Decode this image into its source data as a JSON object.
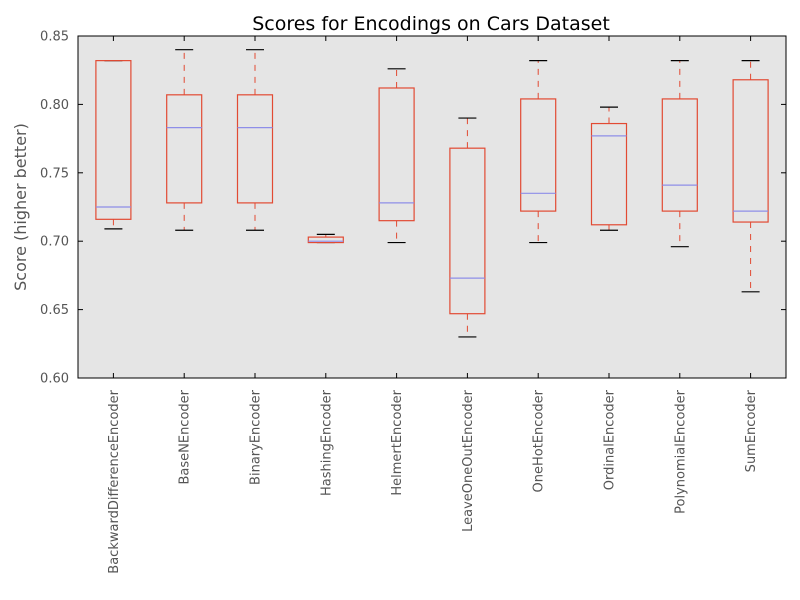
{
  "chart_data": {
    "type": "box",
    "title": "Scores for Encodings on Cars Dataset",
    "xlabel": "",
    "ylabel": "Score (higher better)",
    "ylim": [
      0.6,
      0.85
    ],
    "yticks": [
      "0.60",
      "0.65",
      "0.70",
      "0.75",
      "0.80",
      "0.85"
    ],
    "grid": false,
    "categories": [
      "BackwardDifferenceEncoder",
      "BaseNEncoder",
      "BinaryEncoder",
      "HashingEncoder",
      "HelmertEncoder",
      "LeaveOneOutEncoder",
      "OneHotEncoder",
      "OrdinalEncoder",
      "PolynomialEncoder",
      "SumEncoder"
    ],
    "boxes": [
      {
        "whislo": 0.709,
        "q1": 0.716,
        "med": 0.725,
        "q3": 0.832,
        "whishi": 0.832
      },
      {
        "whislo": 0.708,
        "q1": 0.728,
        "med": 0.783,
        "q3": 0.807,
        "whishi": 0.84
      },
      {
        "whislo": 0.708,
        "q1": 0.728,
        "med": 0.783,
        "q3": 0.807,
        "whishi": 0.84
      },
      {
        "whislo": 0.699,
        "q1": 0.699,
        "med": 0.7,
        "q3": 0.703,
        "whishi": 0.705
      },
      {
        "whislo": 0.699,
        "q1": 0.715,
        "med": 0.728,
        "q3": 0.812,
        "whishi": 0.826
      },
      {
        "whislo": 0.63,
        "q1": 0.647,
        "med": 0.673,
        "q3": 0.768,
        "whishi": 0.79
      },
      {
        "whislo": 0.699,
        "q1": 0.722,
        "med": 0.735,
        "q3": 0.804,
        "whishi": 0.832
      },
      {
        "whislo": 0.708,
        "q1": 0.712,
        "med": 0.777,
        "q3": 0.786,
        "whishi": 0.798
      },
      {
        "whislo": 0.696,
        "q1": 0.722,
        "med": 0.741,
        "q3": 0.804,
        "whishi": 0.832
      },
      {
        "whislo": 0.663,
        "q1": 0.714,
        "med": 0.722,
        "q3": 0.818,
        "whishi": 0.832
      }
    ],
    "colors": {
      "plot_bg": "#e5e5e5",
      "box": "#e24a33",
      "whisker": "#e24a33",
      "cap": "#000000",
      "median": "#8e8ee8",
      "text": "#555555"
    }
  }
}
